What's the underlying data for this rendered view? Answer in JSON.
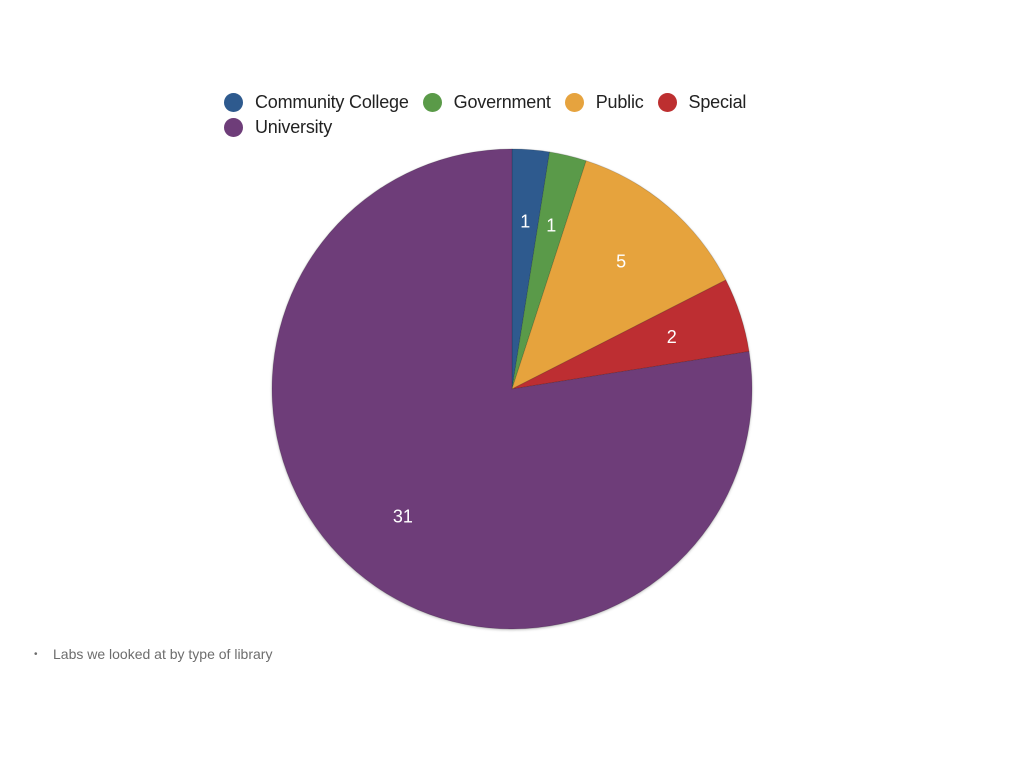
{
  "chart_data": {
    "type": "pie",
    "categories": [
      "Community College",
      "Government",
      "Public",
      "Special",
      "University"
    ],
    "values": [
      1,
      1,
      5,
      2,
      31
    ],
    "data_labels": [
      "1",
      "1",
      "5",
      "2",
      "31"
    ],
    "colors": [
      "#2e5a8e",
      "#5a9a48",
      "#e6a33e",
      "#bd2f30",
      "#6e3d79"
    ],
    "legend_position": "top",
    "start_angle": "12 o'clock, clockwise"
  },
  "caption": {
    "bullet": "•",
    "text": "Labs we looked at by type of library"
  }
}
